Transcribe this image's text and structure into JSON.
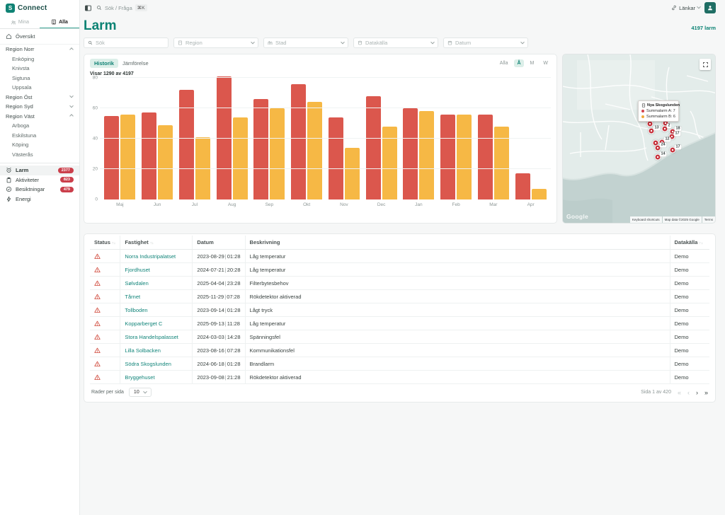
{
  "brand": {
    "logo_glyph": "S",
    "name": "Connect"
  },
  "topbar": {
    "search_placeholder": "Sök / Fråga",
    "search_shortcut": "⌘K",
    "links_label": "Länkar"
  },
  "page": {
    "title": "Larm",
    "total_alarms": "4197 larm"
  },
  "sidebar": {
    "tabs": [
      {
        "label": "Mina",
        "active": false
      },
      {
        "label": "Alla",
        "active": true
      }
    ],
    "overview_label": "Översikt",
    "regions": [
      {
        "label": "Region Norr",
        "expanded": true,
        "items": [
          "Enköping",
          "Knivsta",
          "Sigtuna",
          "Uppsala"
        ]
      },
      {
        "label": "Region Öst",
        "expanded": false,
        "items": []
      },
      {
        "label": "Region Syd",
        "expanded": false,
        "items": []
      },
      {
        "label": "Region Väst",
        "expanded": true,
        "items": [
          "Arboga",
          "Eskilstuna",
          "Köping",
          "Västerås"
        ]
      }
    ],
    "nav": [
      {
        "label": "Larm",
        "icon": "alarm-icon",
        "badge": "2377",
        "active": true
      },
      {
        "label": "Aktiviteter",
        "icon": "clipboard-icon",
        "badge": "823",
        "active": false
      },
      {
        "label": "Besiktningar",
        "icon": "check-circle-icon",
        "badge": "479",
        "active": false
      },
      {
        "label": "Energi",
        "icon": "lightning-icon",
        "badge": "",
        "active": false
      }
    ]
  },
  "filters": [
    {
      "placeholder": "Sök",
      "type": "input"
    },
    {
      "placeholder": "Region",
      "type": "select"
    },
    {
      "placeholder": "Stad",
      "type": "select"
    },
    {
      "placeholder": "Datakälla",
      "type": "select"
    },
    {
      "placeholder": "Datum",
      "type": "select"
    }
  ],
  "chart_card": {
    "tabs": [
      {
        "label": "Historik",
        "active": true
      },
      {
        "label": "Jämförelse",
        "active": false
      }
    ],
    "range_options": [
      {
        "label": "Alla",
        "active": false
      },
      {
        "label": "Å",
        "active": true
      },
      {
        "label": "M",
        "active": false
      },
      {
        "label": "W",
        "active": false
      }
    ],
    "showing_text": "Visar 1290 av 4197"
  },
  "chart_data": {
    "type": "bar",
    "title": "",
    "categories": [
      "Maj",
      "Jun",
      "Jul",
      "Aug",
      "Sep",
      "Okt",
      "Nov",
      "Dec",
      "Jan",
      "Feb",
      "Mar",
      "Apr"
    ],
    "series": [
      {
        "name": "Summalarm A",
        "color": "#DB574D",
        "values": [
          55,
          57,
          72,
          81,
          66,
          76,
          54,
          68,
          60,
          56,
          56,
          17
        ]
      },
      {
        "name": "Summalarm B",
        "color": "#F6B845",
        "values": [
          56,
          49,
          41,
          54,
          60,
          64,
          34,
          48,
          58,
          56,
          48,
          7
        ]
      }
    ],
    "xlabel": "",
    "ylabel": "",
    "ylim": [
      0,
      80
    ],
    "yticks": [
      0,
      20,
      40,
      60,
      80
    ],
    "grid": "horizontal",
    "legend_position": "none"
  },
  "map": {
    "tooltip": {
      "title": "Nya Skogslunden",
      "rows": [
        {
          "text": "Summalarm A: 7",
          "color": "#d2434d"
        },
        {
          "text": "Summalarm B: 6",
          "color": "#f0a93c"
        }
      ]
    },
    "markers": [
      {
        "x": 123,
        "y": 98,
        "label": ""
      },
      {
        "x": 145,
        "y": 97,
        "label": ""
      },
      {
        "x": 125,
        "y": 108,
        "label": "13"
      },
      {
        "x": 144,
        "y": 105,
        "label": "2"
      },
      {
        "x": 155,
        "y": 109,
        "label": "18"
      },
      {
        "x": 154,
        "y": 116,
        "label": "17"
      },
      {
        "x": 131,
        "y": 125,
        "label": ""
      },
      {
        "x": 140,
        "y": 124,
        "label": "12"
      },
      {
        "x": 134,
        "y": 132,
        "label": "24"
      },
      {
        "x": 155,
        "y": 135,
        "label": "17"
      },
      {
        "x": 134,
        "y": 145,
        "label": "14"
      }
    ],
    "google_label": "Google",
    "attribution": [
      "Keyboard shortcuts",
      "Map data ©2025 Google",
      "Terms"
    ]
  },
  "table": {
    "columns": [
      {
        "label": "Status",
        "sortable": true
      },
      {
        "label": "Fastighet",
        "sortable": true
      },
      {
        "label": "Datum",
        "sortable": false
      },
      {
        "label": "Beskrivning",
        "sortable": false
      },
      {
        "label": "Datakälla",
        "sortable": true
      }
    ],
    "rows": [
      {
        "fastighet": "Norra Industripalatset",
        "datum": "2023-08-29",
        "tid": "01:28",
        "beskrivning": "Låg temperatur",
        "datakalla": "Demo"
      },
      {
        "fastighet": "Fjordhuset",
        "datum": "2024-07-21",
        "tid": "20:28",
        "beskrivning": "Låg temperatur",
        "datakalla": "Demo"
      },
      {
        "fastighet": "Sølvdalen",
        "datum": "2025-04-04",
        "tid": "23:28",
        "beskrivning": "Filterbytesbehov",
        "datakalla": "Demo"
      },
      {
        "fastighet": "Tårnet",
        "datum": "2025-11-29",
        "tid": "07:28",
        "beskrivning": "Rökdetektor aktiverad",
        "datakalla": "Demo"
      },
      {
        "fastighet": "Tollboden",
        "datum": "2023-09-14",
        "tid": "01:28",
        "beskrivning": "Lågt tryck",
        "datakalla": "Demo"
      },
      {
        "fastighet": "Kopparberget C",
        "datum": "2025-09-13",
        "tid": "11:28",
        "beskrivning": "Låg temperatur",
        "datakalla": "Demo"
      },
      {
        "fastighet": "Stora Handelspalasset",
        "datum": "2024-03-03",
        "tid": "14:28",
        "beskrivning": "Spänningsfel",
        "datakalla": "Demo"
      },
      {
        "fastighet": "Lilla Solbacken",
        "datum": "2023-08-16",
        "tid": "07:28",
        "beskrivning": "Kommunikationsfel",
        "datakalla": "Demo"
      },
      {
        "fastighet": "Södra Skogslunden",
        "datum": "2024-06-18",
        "tid": "01:28",
        "beskrivning": "Brandlarm",
        "datakalla": "Demo"
      },
      {
        "fastighet": "Bryggehuset",
        "datum": "2023-09-08",
        "tid": "21:28",
        "beskrivning": "Rökdetektor aktiverad",
        "datakalla": "Demo"
      }
    ],
    "footer": {
      "rows_per_page_label": "Rader per sida",
      "rows_per_page_value": "10",
      "page_info": "Sida 1 av 420",
      "pager_icons": [
        "«",
        "‹",
        "›",
        "»"
      ]
    }
  },
  "colors": {
    "accent": "#0F8274",
    "alarm_red": "#DB574D",
    "alarm_yellow": "#F6B845",
    "badge_red": "#CB3F4B"
  }
}
